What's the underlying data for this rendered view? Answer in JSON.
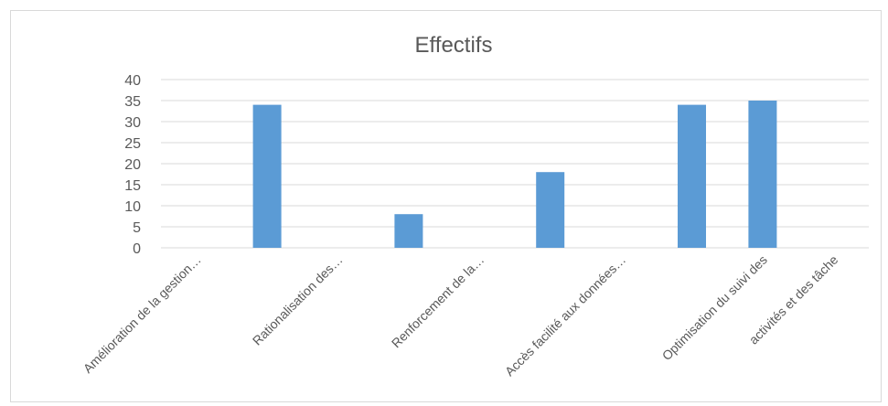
{
  "chart_data": {
    "type": "bar",
    "title": "Effectifs",
    "xlabel": "",
    "ylabel": "",
    "ylim": [
      0,
      40
    ],
    "y_ticks": [
      "0",
      "5",
      "10",
      "15",
      "20",
      "25",
      "30",
      "35",
      "40"
    ],
    "grid": true,
    "legend": "none",
    "categories": [
      "Amélioration de la gestion…",
      "",
      "Rationalisation des…",
      "",
      "Renforcement de la…",
      "",
      "Accès facilité aux données…",
      "",
      "Optimisation du suivi des",
      "activités et des tâche"
    ],
    "series": [
      {
        "values": [
          0,
          34,
          0,
          8,
          0,
          18,
          0,
          34,
          35,
          0
        ]
      }
    ],
    "colors": {
      "bar": "#5b9bd5",
      "grid": "#d9d9d9",
      "text": "#595959",
      "border": "#d9d9d9"
    }
  }
}
